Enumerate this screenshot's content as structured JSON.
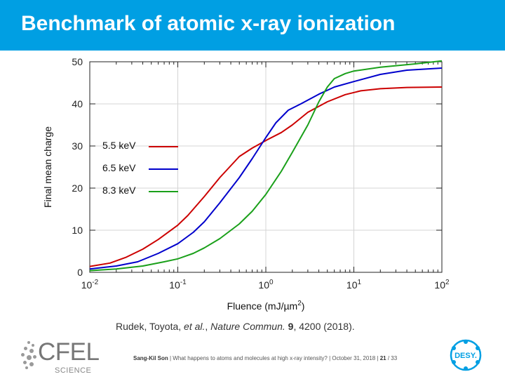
{
  "slide": {
    "title": "Benchmark of atomic x-ray ionization"
  },
  "citation": {
    "authors": "Rudek, Toyota, ",
    "etal": "et al.",
    "sep": ", ",
    "journal": "Nature Commun.",
    "sp": " ",
    "volume": "9",
    "rest": ", 4200 (2018)."
  },
  "footer": {
    "presenter": "Sang-Kil Son",
    "talk": "  |  What happens to atoms and molecules at high x-ray intensity?  |  October 31, 2018  |  ",
    "page": "21",
    "total": " / 33",
    "logo_text": "CFEL",
    "logo_sub": "SCIENCE",
    "desy_text": "DESY."
  },
  "colors": {
    "title_bar": "#009fe3",
    "series_red": "#cc0000",
    "series_blue": "#0000cc",
    "series_green": "#1aa01a"
  },
  "chart_data": {
    "type": "line",
    "xlabel": "Fluence (mJ/µm",
    "xlabel_sup": "2",
    "xlabel_end": ")",
    "ylabel": "Final mean charge",
    "xscale": "log",
    "xlim": [
      0.01,
      100
    ],
    "ylim": [
      0,
      50
    ],
    "x_ticks": [
      {
        "value": 0.01,
        "base": "10",
        "exp": "-2"
      },
      {
        "value": 0.1,
        "base": "10",
        "exp": "-1"
      },
      {
        "value": 1,
        "base": "10",
        "exp": "0"
      },
      {
        "value": 10,
        "base": "10",
        "exp": "1"
      },
      {
        "value": 100,
        "base": "10",
        "exp": "2"
      }
    ],
    "y_ticks": [
      0,
      10,
      20,
      30,
      40,
      50
    ],
    "grid": true,
    "legend_position": "middle-left",
    "series": [
      {
        "name": "5.5 keV",
        "color": "#cc0000",
        "points": [
          [
            0.01,
            1.4
          ],
          [
            0.017,
            2.2
          ],
          [
            0.026,
            3.6
          ],
          [
            0.04,
            5.5
          ],
          [
            0.06,
            7.8
          ],
          [
            0.1,
            11.2
          ],
          [
            0.13,
            13.5
          ],
          [
            0.2,
            18
          ],
          [
            0.3,
            22.5
          ],
          [
            0.5,
            27.5
          ],
          [
            0.7,
            29.5
          ],
          [
            1,
            31.3
          ],
          [
            1.5,
            33.2
          ],
          [
            2,
            35
          ],
          [
            3,
            38
          ],
          [
            5,
            40.5
          ],
          [
            8,
            42.2
          ],
          [
            12,
            43.1
          ],
          [
            20,
            43.6
          ],
          [
            40,
            43.9
          ],
          [
            100,
            44
          ]
        ]
      },
      {
        "name": "6.5 keV",
        "color": "#0000cc",
        "points": [
          [
            0.01,
            0.8
          ],
          [
            0.02,
            1.5
          ],
          [
            0.035,
            2.5
          ],
          [
            0.06,
            4.5
          ],
          [
            0.1,
            6.8
          ],
          [
            0.15,
            9.5
          ],
          [
            0.2,
            12
          ],
          [
            0.3,
            16.5
          ],
          [
            0.5,
            22.5
          ],
          [
            0.7,
            27
          ],
          [
            1,
            32
          ],
          [
            1.3,
            35.5
          ],
          [
            1.8,
            38.5
          ],
          [
            2.5,
            40
          ],
          [
            4,
            42.3
          ],
          [
            6,
            44
          ],
          [
            10,
            45.3
          ],
          [
            20,
            47
          ],
          [
            40,
            48
          ],
          [
            100,
            48.5
          ]
        ]
      },
      {
        "name": "8.3 keV",
        "color": "#1aa01a",
        "points": [
          [
            0.01,
            0.4
          ],
          [
            0.02,
            0.8
          ],
          [
            0.04,
            1.5
          ],
          [
            0.07,
            2.5
          ],
          [
            0.1,
            3.2
          ],
          [
            0.15,
            4.5
          ],
          [
            0.2,
            5.8
          ],
          [
            0.3,
            8
          ],
          [
            0.5,
            11.5
          ],
          [
            0.7,
            14.5
          ],
          [
            1,
            18.5
          ],
          [
            1.5,
            24
          ],
          [
            2,
            28.5
          ],
          [
            3,
            35
          ],
          [
            4,
            40.5
          ],
          [
            5,
            44
          ],
          [
            6,
            46
          ],
          [
            8,
            47.2
          ],
          [
            10,
            47.8
          ],
          [
            20,
            48.7
          ],
          [
            50,
            49.5
          ],
          [
            100,
            50.2
          ]
        ]
      }
    ]
  }
}
